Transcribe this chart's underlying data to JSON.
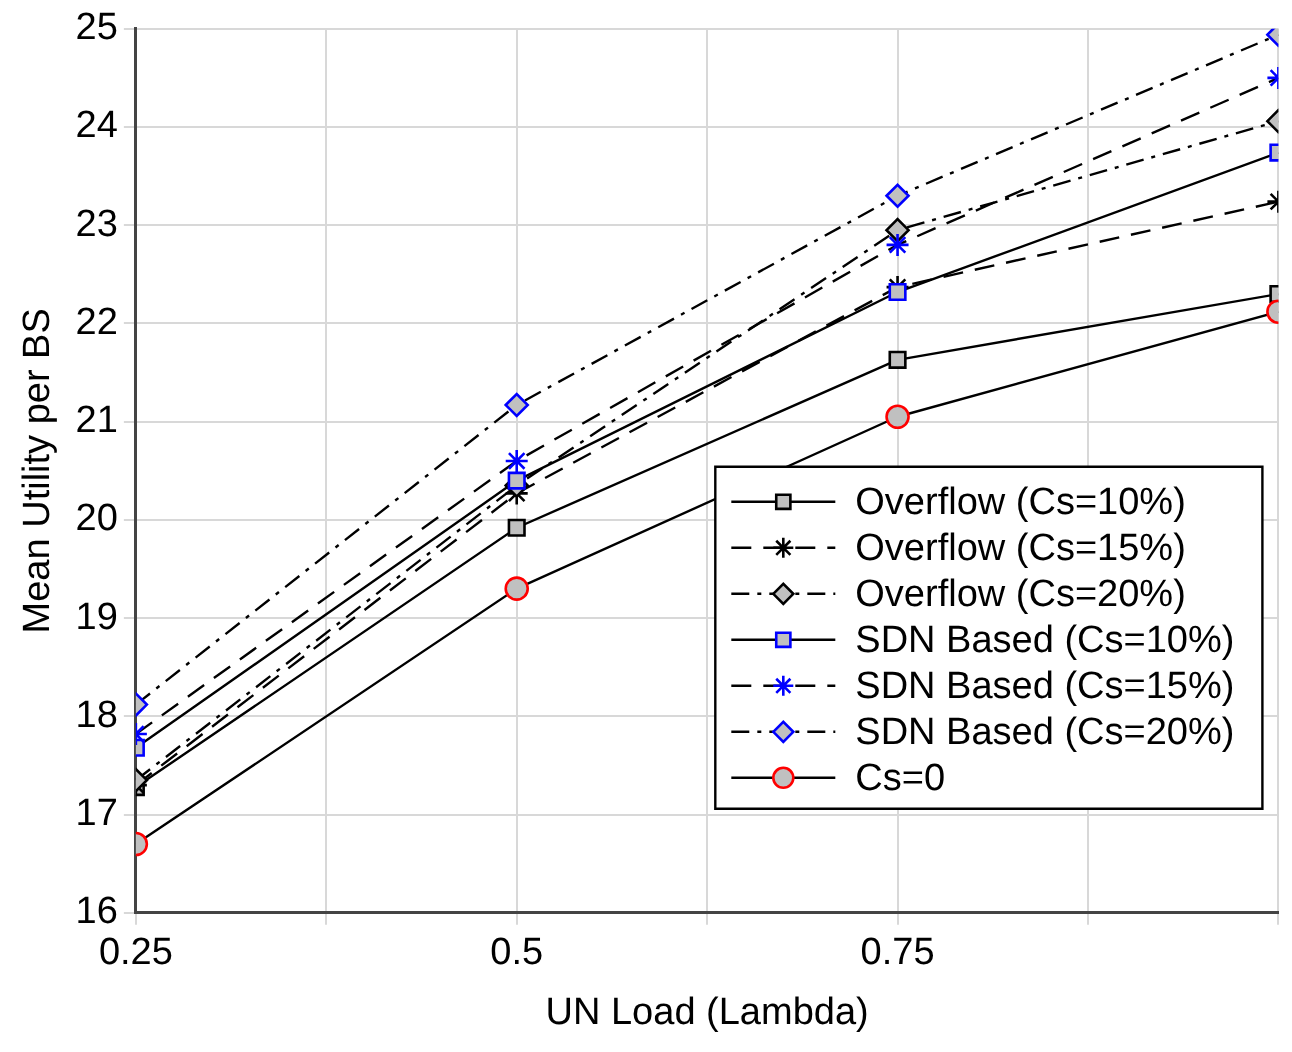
{
  "chart_data": {
    "type": "line",
    "xlabel": "UN Load (Lambda)",
    "ylabel": "Mean Utility per BS",
    "x": [
      0.25,
      0.5,
      0.75,
      1
    ],
    "xlim": [
      0.25,
      1
    ],
    "xticks": [
      0.25,
      {
        "value": 0.375,
        "label": null
      },
      0.5,
      {
        "value": 0.625,
        "label": null
      },
      0.75,
      {
        "value": 0.875,
        "label": null
      },
      {
        "value": 1,
        "label": null
      }
    ],
    "ylim": [
      16,
      25
    ],
    "yticks": [
      16,
      17,
      18,
      19,
      20,
      21,
      22,
      23,
      24,
      25
    ],
    "grid": true,
    "legend": "bottom right",
    "series": [
      {
        "name": "Overflow (Cs=10%)",
        "color": "#000000",
        "marker": "square",
        "line_style": "solid",
        "values": [
          17.28,
          19.92,
          21.63,
          22.3
        ]
      },
      {
        "name": "Overflow (Cs=15%)",
        "color": "#000000",
        "marker": "cross",
        "line_style": "dashed",
        "values": [
          17.3,
          20.27,
          22.37,
          23.24
        ]
      },
      {
        "name": "Overflow (Cs=20%)",
        "color": "#000000",
        "marker": "diamond",
        "line_style": "dashdot",
        "values": [
          17.35,
          20.35,
          22.95,
          24.06
        ]
      },
      {
        "name": "SDN Based (Cs=10%)",
        "color": "#0000ff",
        "marker": "square",
        "line_style": "solid",
        "values": [
          17.68,
          20.4,
          22.32,
          23.74
        ]
      },
      {
        "name": "SDN Based (Cs=15%)",
        "color": "#0000ff",
        "marker": "cross",
        "line_style": "dashed",
        "values": [
          17.82,
          20.6,
          22.8,
          24.5
        ]
      },
      {
        "name": "SDN Based (Cs=20%)",
        "color": "#0000ff",
        "marker": "diamond",
        "line_style": "dashdot",
        "values": [
          18.12,
          21.17,
          23.3,
          24.94
        ]
      },
      {
        "name": "Cs=0",
        "color": "#ff0000",
        "marker": "circle",
        "line_style": "solid",
        "values": [
          16.7,
          19.3,
          21.05,
          22.12
        ]
      }
    ]
  }
}
